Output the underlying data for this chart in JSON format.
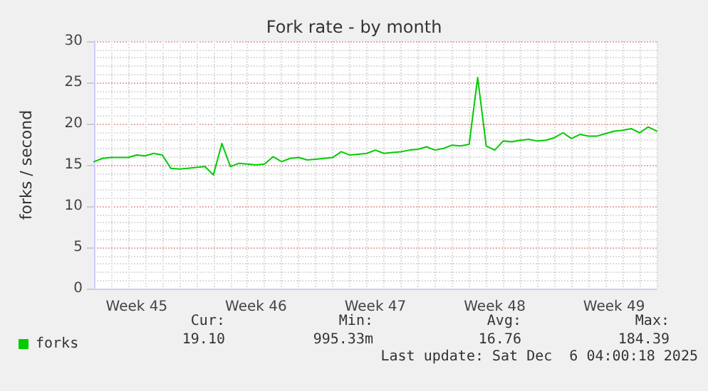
{
  "chart_data": {
    "type": "line",
    "title": "Fork rate - by month",
    "ylabel": "forks / second",
    "categories": [
      null,
      null,
      null,
      null,
      null,
      "Week 45",
      null,
      null,
      null,
      null,
      null,
      null,
      null,
      null,
      null,
      null,
      null,
      null,
      null,
      "Week 46",
      null,
      null,
      null,
      null,
      null,
      null,
      null,
      null,
      null,
      null,
      null,
      null,
      null,
      "Week 47",
      null,
      null,
      null,
      null,
      null,
      null,
      null,
      null,
      null,
      null,
      null,
      null,
      null,
      "Week 48",
      null,
      null,
      null,
      null,
      null,
      null,
      null,
      null,
      null,
      null,
      null,
      null,
      null,
      "Week 49",
      null,
      null,
      null,
      null,
      null
    ],
    "ylim": [
      0,
      30
    ],
    "yticks": [
      0,
      5,
      10,
      15,
      20,
      25,
      30
    ],
    "grid": true,
    "legend": "bottom left",
    "marker": "none",
    "line_style": "solid",
    "annotations": [
      "Cur:",
      "Min:",
      "Avg:",
      "Max:",
      "19.10",
      "995.33m",
      "16.76",
      "184.39",
      "Last update: Sat Dec  6 04:00:18 2025"
    ],
    "series": [
      {
        "name": "forks",
        "color": "#00cc00",
        "values": [
          15.4,
          15.8,
          15.9,
          15.9,
          15.9,
          16.2,
          16.1,
          16.4,
          16.2,
          14.6,
          14.5,
          14.6,
          14.7,
          14.8,
          13.8,
          17.6,
          14.8,
          15.2,
          15.1,
          15.0,
          15.1,
          16.0,
          15.4,
          15.8,
          15.9,
          15.6,
          15.7,
          15.8,
          15.9,
          16.6,
          16.2,
          16.3,
          16.4,
          16.8,
          16.4,
          16.5,
          16.6,
          16.8,
          16.9,
          17.2,
          16.8,
          17.0,
          17.4,
          17.3,
          17.5,
          25.6,
          17.3,
          16.8,
          17.9,
          17.8,
          18.0,
          18.1,
          17.9,
          18.0,
          18.3,
          18.9,
          18.2,
          18.7,
          18.5,
          18.5,
          18.8,
          19.1,
          19.2,
          19.4,
          18.9,
          19.6,
          19.1
        ]
      }
    ]
  }
}
